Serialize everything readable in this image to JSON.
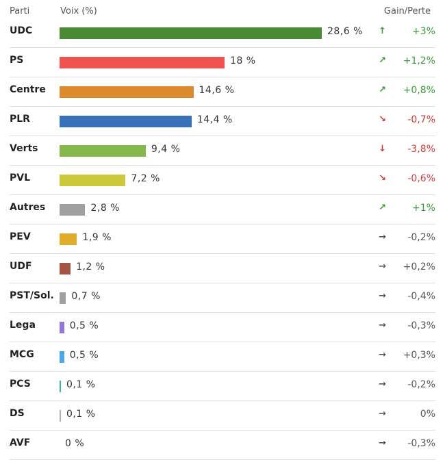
{
  "header": {
    "party": "Parti",
    "votes": "Voix (%)",
    "gain": "Gain/Perte"
  },
  "chart_data": {
    "type": "bar",
    "xlim": [
      0,
      28.6
    ],
    "rows": [
      {
        "party": "UDC",
        "value": 28.6,
        "label": "28,6 %",
        "color": "#4a8a35",
        "trend": "up",
        "change": "+3%",
        "sign": "pos"
      },
      {
        "party": "PS",
        "value": 18,
        "label": "18 %",
        "color": "#ef5350",
        "trend": "up-right",
        "change": "+1,2%",
        "sign": "pos"
      },
      {
        "party": "Centre",
        "value": 14.6,
        "label": "14,6 %",
        "color": "#dd8a2c",
        "trend": "up-right",
        "change": "+0,8%",
        "sign": "pos"
      },
      {
        "party": "PLR",
        "value": 14.4,
        "label": "14,4 %",
        "color": "#3772b8",
        "trend": "down-right",
        "change": "-0,7%",
        "sign": "neg"
      },
      {
        "party": "Verts",
        "value": 9.4,
        "label": "9,4 %",
        "color": "#84b84a",
        "trend": "down",
        "change": "-3,8%",
        "sign": "neg"
      },
      {
        "party": "PVL",
        "value": 7.2,
        "label": "7,2 %",
        "color": "#cbc93a",
        "trend": "down-right",
        "change": "-0,6%",
        "sign": "neg"
      },
      {
        "party": "Autres",
        "value": 2.8,
        "label": "2,8 %",
        "color": "#a0a0a0",
        "trend": "up-right",
        "change": "+1%",
        "sign": "pos"
      },
      {
        "party": "PEV",
        "value": 1.9,
        "label": "1,9 %",
        "color": "#e0ad2a",
        "trend": "right",
        "change": "-0,2%",
        "sign": "neu"
      },
      {
        "party": "UDF",
        "value": 1.2,
        "label": "1,2 %",
        "color": "#a5543f",
        "trend": "right",
        "change": "+0,2%",
        "sign": "neu"
      },
      {
        "party": "PST/Sol.",
        "value": 0.7,
        "label": "0,7 %",
        "color": "#a0a0a0",
        "trend": "right",
        "change": "-0,4%",
        "sign": "neu"
      },
      {
        "party": "Lega",
        "value": 0.5,
        "label": "0,5 %",
        "color": "#9575d6",
        "trend": "right",
        "change": "-0,3%",
        "sign": "neu"
      },
      {
        "party": "MCG",
        "value": 0.5,
        "label": "0,5 %",
        "color": "#4aa8e8",
        "trend": "right",
        "change": "+0,3%",
        "sign": "neu"
      },
      {
        "party": "PCS",
        "value": 0.1,
        "label": "0,1 %",
        "color": "#3ab5b0",
        "trend": "right",
        "change": "-0,2%",
        "sign": "neu"
      },
      {
        "party": "DS",
        "value": 0.1,
        "label": "0,1 %",
        "color": "#b0b0b0",
        "trend": "right",
        "change": "0%",
        "sign": "neu"
      },
      {
        "party": "AVF",
        "value": 0,
        "label": "0 %",
        "color": "#a0a0a0",
        "trend": "right",
        "change": "-0,3%",
        "sign": "neu"
      }
    ]
  }
}
